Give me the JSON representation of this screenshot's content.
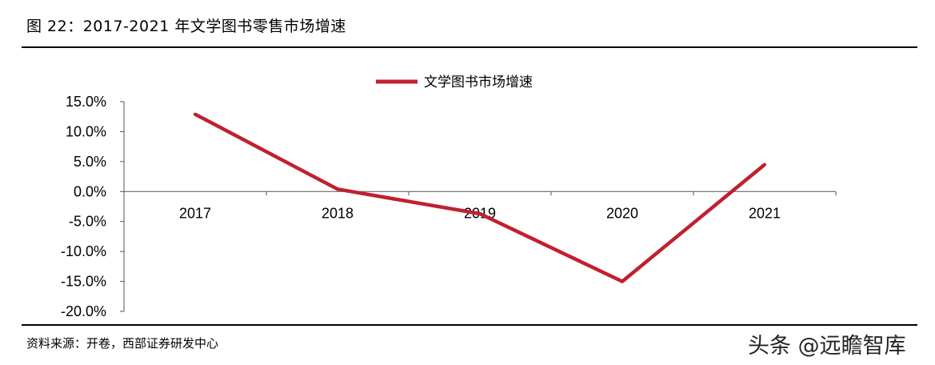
{
  "figure": {
    "title": "图 22：2017-2021 年文学图书零售市场增速",
    "source": "资料来源：开卷，西部证券研发中心",
    "watermark": "头条 @远瞻智库"
  },
  "chart_data": {
    "type": "line",
    "categories": [
      "2017",
      "2018",
      "2019",
      "2020",
      "2021"
    ],
    "series": [
      {
        "name": "文学图书市场增速",
        "values": [
          12.9,
          0.4,
          -3.7,
          -15.0,
          4.5
        ],
        "color": "#C0202F"
      }
    ],
    "yticks": [
      "15.0%",
      "10.0%",
      "5.0%",
      "0.0%",
      "-5.0%",
      "-10.0%",
      "-15.0%",
      "-20.0%"
    ],
    "ytick_values": [
      15,
      10,
      5,
      0,
      -5,
      -10,
      -15,
      -20
    ],
    "ylim": [
      -20,
      15
    ],
    "xlabel": "",
    "ylabel": "",
    "grid": false,
    "legend_position": "top-center"
  }
}
